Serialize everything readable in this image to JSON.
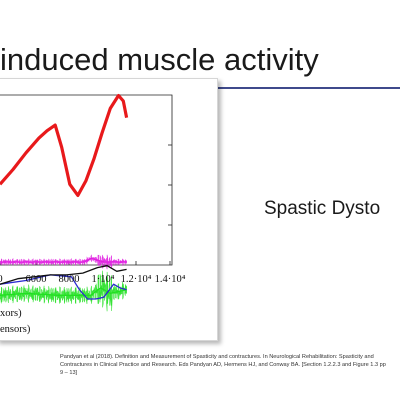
{
  "slide": {
    "title": "induced muscle activity",
    "side_text": "Spastic Dysto",
    "citation_lines": [
      "Pandyan et al (2018). Definition and Measurement of Spasticity and contractures. In Neurological Rehabilitation: Spasticity and",
      "Contractures in Clinical Practice and Research. Eds Pandyan AD, Hermens HJ, and Conway BA. [Section 1.2.2.3 and Figure 1.3 pp",
      "9 – 13]"
    ]
  },
  "chart_data": {
    "type": "line",
    "x_tick_labels": [
      "0",
      "6000",
      "8000",
      "1·10⁴",
      "1.2·10⁴",
      "1.4·10⁴"
    ],
    "xlim": [
      4400,
      15000
    ],
    "legend_fragments": [
      "xors)",
      "ensors)"
    ],
    "series": [
      {
        "color": "#e8191b",
        "x": [
          4400,
          5200,
          6000,
          6800,
          7300,
          7800,
          8200,
          8700,
          9200,
          9700,
          10200,
          10700,
          11200,
          11700,
          12000,
          12200
        ],
        "y": [
          0.62,
          0.7,
          0.79,
          0.87,
          0.91,
          0.94,
          0.82,
          0.62,
          0.56,
          0.64,
          0.76,
          0.9,
          1.03,
          1.1,
          1.07,
          0.98
        ]
      },
      {
        "color": "#e020e0",
        "x": [
          4400,
          9600,
          10000,
          10800,
          12200
        ],
        "y": [
          0.2,
          0.2,
          0.22,
          0.2,
          0.2
        ]
      },
      {
        "color": "#20e020",
        "x": [
          4400,
          6000,
          8000,
          9500,
          10000,
          10600,
          11200,
          12200
        ],
        "y": [
          0.02,
          0.03,
          0.02,
          0.02,
          0.02,
          0.06,
          0.03,
          0.05
        ]
      },
      {
        "color": "#2a2acf",
        "x": [
          4400,
          6000,
          7500,
          8800,
          9300,
          9800,
          10300,
          10800,
          11400,
          11800,
          12200
        ],
        "y": [
          0.08,
          0.1,
          0.13,
          0.12,
          0.05,
          0.0,
          0.0,
          0.01,
          0.08,
          0.06,
          0.05
        ]
      },
      {
        "color": "#111111",
        "x": [
          4400,
          5500,
          6500,
          7500,
          8500,
          9500,
          10400,
          11000,
          11600,
          12200
        ],
        "y": [
          0.08,
          0.11,
          0.12,
          0.13,
          0.13,
          0.14,
          0.17,
          0.18,
          0.15,
          0.16
        ]
      }
    ]
  }
}
